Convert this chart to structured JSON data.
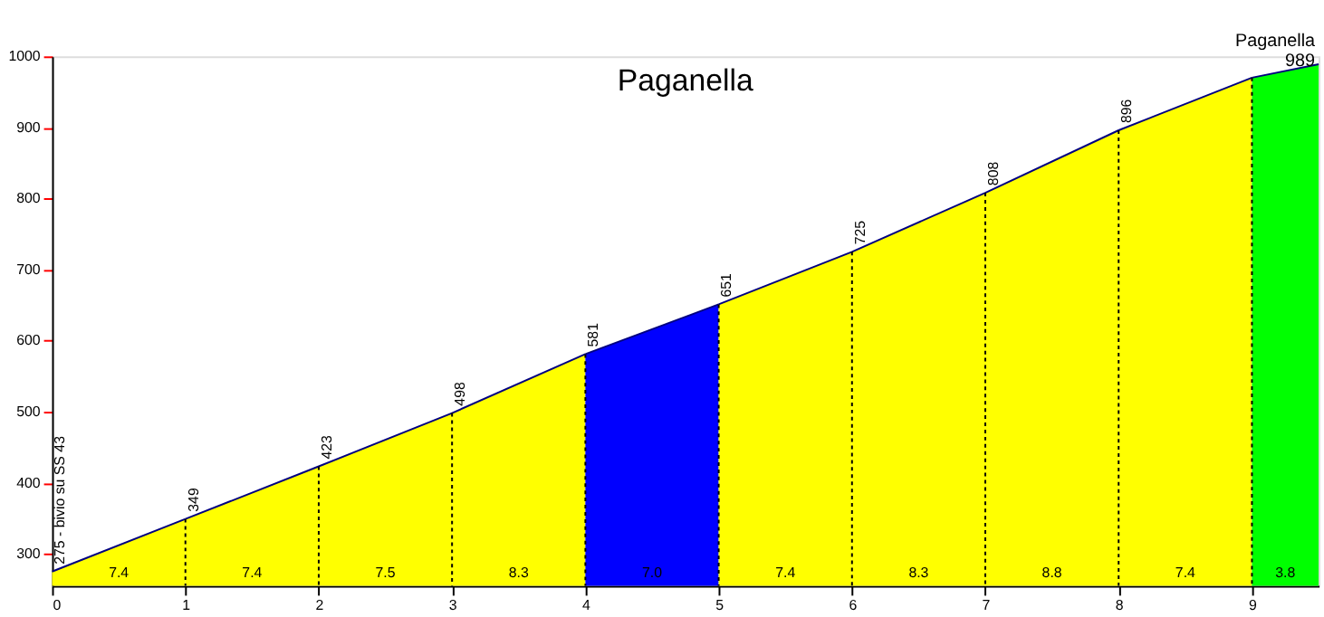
{
  "chart_data": {
    "type": "area",
    "title": "Paganella",
    "series": [
      {
        "color": "#ffff00",
        "x": [
          0,
          1
        ],
        "values": [
          275,
          349
        ],
        "value_labels": [
          "275 - bivio su SS 43",
          "349"
        ]
      },
      {
        "color": "#ffff00",
        "x": [
          1,
          2
        ],
        "values": [
          349,
          423
        ],
        "value_labels": [
          null,
          "423"
        ]
      },
      {
        "color": "#ffff00",
        "x": [
          2,
          3
        ],
        "values": [
          423,
          498
        ],
        "value_labels": [
          null,
          "498"
        ]
      },
      {
        "color": "#ffff00",
        "x": [
          3,
          4
        ],
        "values": [
          498,
          581
        ],
        "value_labels": [
          null,
          "581"
        ]
      },
      {
        "color": "#0000ff",
        "x": [
          4,
          5
        ],
        "values": [
          581,
          651
        ],
        "value_labels": [
          null,
          "651"
        ]
      },
      {
        "color": "#ffff00",
        "x": [
          5,
          6
        ],
        "values": [
          651,
          725
        ],
        "value_labels": [
          null,
          "725"
        ]
      },
      {
        "color": "#ffff00",
        "x": [
          6,
          7
        ],
        "values": [
          725,
          808
        ],
        "value_labels": [
          null,
          "808"
        ]
      },
      {
        "color": "#ffff00",
        "x": [
          7,
          8
        ],
        "values": [
          808,
          896
        ],
        "value_labels": [
          null,
          "896"
        ]
      },
      {
        "color": "#ffff00",
        "x": [
          8,
          9
        ],
        "values": [
          896,
          970
        ],
        "value_labels": [
          null,
          null
        ]
      },
      {
        "color": "#00ff00",
        "x": [
          9,
          9.5
        ],
        "values": [
          970,
          989
        ],
        "value_labels": [
          null,
          "Paganella 989"
        ]
      }
    ],
    "annotations": [
      "7.4",
      "7.4",
      "7.5",
      "8.3",
      "7.0",
      "7.4",
      "8.3",
      "8.8",
      "7.4",
      "3.8"
    ],
    "xlim": [
      0,
      9.5
    ],
    "xticks": [
      0,
      1,
      2,
      3,
      4,
      5,
      6,
      7,
      8,
      9
    ],
    "ylim": [
      255,
      1000
    ],
    "yticks": [
      300,
      400,
      500,
      600,
      700,
      800,
      900,
      1000
    ],
    "grid": "x",
    "legend": false
  }
}
